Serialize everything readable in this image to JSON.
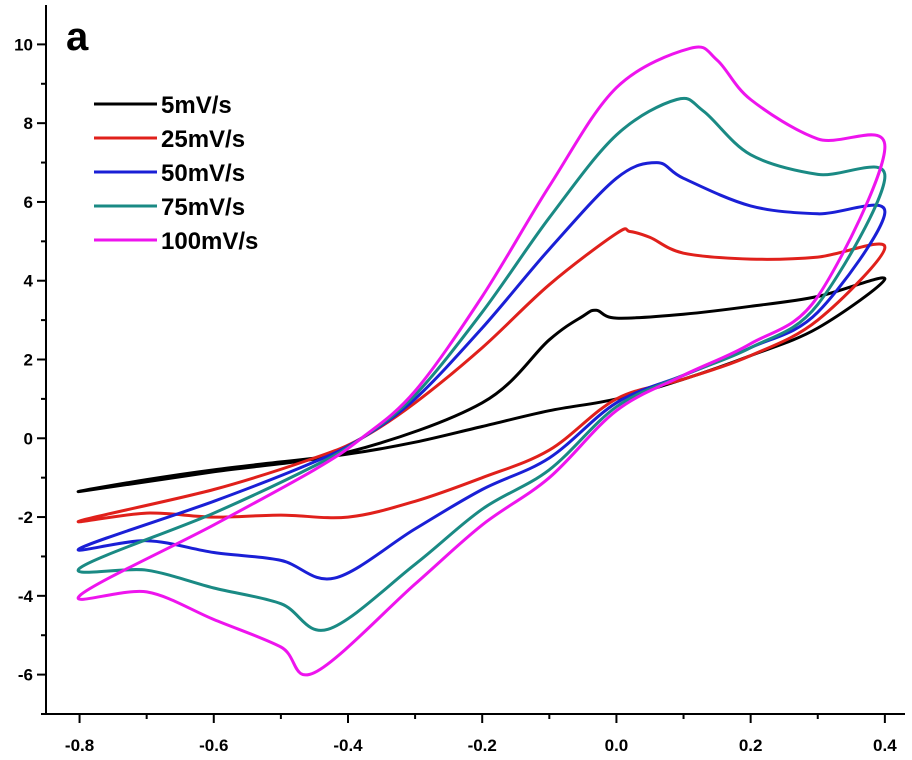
{
  "chart_data": {
    "type": "line",
    "panel_label": "a",
    "title": "",
    "xlabel": "",
    "ylabel": "",
    "xlim": [
      -0.85,
      0.43
    ],
    "ylim": [
      -7,
      11
    ],
    "x_ticks": [
      "-0.8",
      "-0.6",
      "-0.4",
      "-0.2",
      "0.0",
      "0.2",
      "0.4"
    ],
    "x_tick_values": [
      -0.8,
      -0.6,
      -0.4,
      -0.2,
      0.0,
      0.2,
      0.4
    ],
    "y_ticks": [
      "-6",
      "-4",
      "-2",
      "0",
      "2",
      "4",
      "6",
      "8",
      "10"
    ],
    "y_tick_values": [
      -6,
      -4,
      -2,
      0,
      2,
      4,
      6,
      8,
      10
    ],
    "grid": false,
    "legend_position": "top-left",
    "series": [
      {
        "name": "5mV/s",
        "color": "#000000",
        "x": [
          -0.8,
          -0.6,
          -0.4,
          -0.2,
          -0.1,
          -0.05,
          -0.03,
          0.0,
          0.1,
          0.2,
          0.3,
          0.4,
          0.3,
          0.2,
          0.1,
          0.0,
          -0.1,
          -0.2,
          -0.3,
          -0.4,
          -0.5,
          -0.6,
          -0.7,
          -0.8
        ],
        "y": [
          -1.35,
          -0.85,
          -0.35,
          0.9,
          2.5,
          3.1,
          3.25,
          3.05,
          3.15,
          3.35,
          3.6,
          4.05,
          2.8,
          2.1,
          1.5,
          1.0,
          0.7,
          0.3,
          -0.1,
          -0.4,
          -0.6,
          -0.8,
          -1.05,
          -1.35
        ]
      },
      {
        "name": "25mV/s",
        "color": "#e0201b",
        "x": [
          -0.8,
          -0.6,
          -0.45,
          -0.38,
          -0.3,
          -0.2,
          -0.1,
          0.0,
          0.02,
          0.05,
          0.1,
          0.2,
          0.3,
          0.4,
          0.3,
          0.2,
          0.1,
          0.0,
          -0.1,
          -0.2,
          -0.3,
          -0.4,
          -0.5,
          -0.6,
          -0.7,
          -0.8
        ],
        "y": [
          -2.1,
          -1.3,
          -0.5,
          0.0,
          0.9,
          2.3,
          3.9,
          5.2,
          5.25,
          5.1,
          4.7,
          4.55,
          4.6,
          4.85,
          3.0,
          2.1,
          1.5,
          1.0,
          -0.3,
          -1.0,
          -1.6,
          -2.0,
          -1.95,
          -2.0,
          -1.9,
          -2.1
        ]
      },
      {
        "name": "50mV/s",
        "color": "#1a1fd6",
        "x": [
          -0.8,
          -0.6,
          -0.45,
          -0.38,
          -0.3,
          -0.2,
          -0.1,
          0.0,
          0.06,
          0.1,
          0.2,
          0.3,
          0.4,
          0.3,
          0.2,
          0.1,
          0.0,
          -0.1,
          -0.2,
          -0.3,
          -0.42,
          -0.5,
          -0.6,
          -0.7,
          -0.8
        ],
        "y": [
          -2.8,
          -1.6,
          -0.6,
          0.0,
          1.0,
          2.8,
          4.8,
          6.6,
          7.0,
          6.6,
          5.9,
          5.7,
          5.75,
          3.2,
          2.3,
          1.6,
          0.9,
          -0.5,
          -1.3,
          -2.3,
          -3.55,
          -3.1,
          -2.9,
          -2.6,
          -2.8
        ]
      },
      {
        "name": "75mV/s",
        "color": "#1a8a84",
        "x": [
          -0.8,
          -0.6,
          -0.45,
          -0.38,
          -0.3,
          -0.2,
          -0.1,
          0.0,
          0.09,
          0.13,
          0.2,
          0.3,
          0.4,
          0.3,
          0.2,
          0.1,
          0.0,
          -0.1,
          -0.2,
          -0.3,
          -0.43,
          -0.5,
          -0.6,
          -0.7,
          -0.8
        ],
        "y": [
          -3.3,
          -1.9,
          -0.7,
          0.0,
          1.1,
          3.2,
          5.6,
          7.7,
          8.6,
          8.3,
          7.2,
          6.7,
          6.65,
          3.4,
          2.3,
          1.6,
          0.8,
          -0.8,
          -1.8,
          -3.2,
          -4.85,
          -4.2,
          -3.8,
          -3.35,
          -3.3
        ]
      },
      {
        "name": "100mV/s",
        "color": "#ee14ee",
        "x": [
          -0.8,
          -0.6,
          -0.45,
          -0.38,
          -0.3,
          -0.2,
          -0.1,
          0.0,
          0.11,
          0.15,
          0.2,
          0.3,
          0.4,
          0.3,
          0.2,
          0.1,
          0.0,
          -0.1,
          -0.2,
          -0.3,
          -0.45,
          -0.5,
          -0.6,
          -0.7,
          -0.8
        ],
        "y": [
          -4.0,
          -2.2,
          -0.8,
          0.0,
          1.2,
          3.6,
          6.4,
          8.9,
          9.9,
          9.6,
          8.6,
          7.6,
          7.4,
          3.6,
          2.4,
          1.6,
          0.7,
          -1.0,
          -2.2,
          -3.7,
          -5.95,
          -5.3,
          -4.6,
          -3.9,
          -4.0
        ]
      }
    ]
  }
}
